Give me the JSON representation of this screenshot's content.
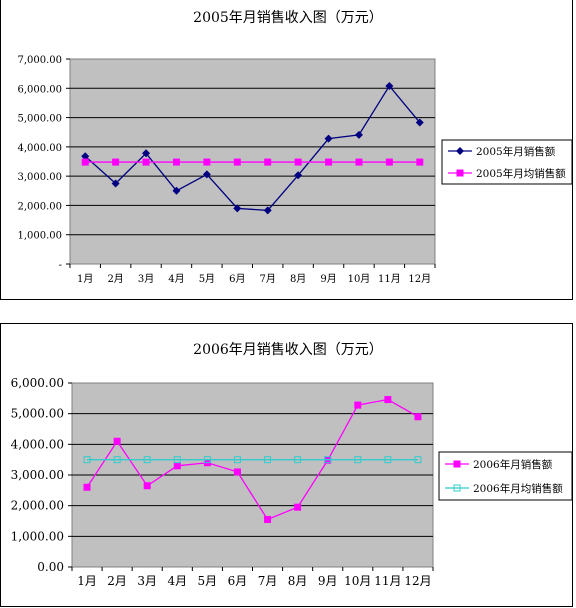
{
  "chart_data": [
    {
      "type": "line",
      "title": "2005年月销售收入图（万元）",
      "categories": [
        "1月",
        "2月",
        "3月",
        "4月",
        "5月",
        "6月",
        "7月",
        "8月",
        "9月",
        "10月",
        "11月",
        "12月"
      ],
      "ylim": [
        0,
        7000
      ],
      "yticks": [
        "-",
        "1,000.00",
        "2,000.00",
        "3,000.00",
        "4,000.00",
        "5,000.00",
        "6,000.00",
        "7,000.00"
      ],
      "grid": true,
      "legend_position": "right",
      "series": [
        {
          "name": "2005年月销售额",
          "color": "#000080",
          "marker": "diamond",
          "values": [
            3680,
            2750,
            3780,
            2500,
            3060,
            1900,
            1830,
            3030,
            4280,
            4410,
            6080,
            4830
          ]
        },
        {
          "name": "2005年月均销售额",
          "color": "#ff00ff",
          "marker": "square",
          "values": [
            3480,
            3480,
            3480,
            3480,
            3480,
            3480,
            3480,
            3480,
            3480,
            3480,
            3480,
            3480
          ]
        }
      ]
    },
    {
      "type": "line",
      "title": "2006年月销售收入图（万元）",
      "categories": [
        "1月",
        "2月",
        "3月",
        "4月",
        "5月",
        "6月",
        "7月",
        "8月",
        "9月",
        "10月",
        "11月",
        "12月"
      ],
      "ylim": [
        0,
        6000
      ],
      "yticks": [
        "0.00",
        "1,000.00",
        "2,000.00",
        "3,000.00",
        "4,000.00",
        "5,000.00",
        "6,000.00"
      ],
      "grid": true,
      "legend_position": "right",
      "series": [
        {
          "name": "2006年月销售额",
          "color": "#ff00ff",
          "marker": "square",
          "values": [
            2600,
            4100,
            2650,
            3300,
            3400,
            3100,
            1550,
            1950,
            3480,
            5280,
            5460,
            4900
          ]
        },
        {
          "name": "2006年月均销售额",
          "color": "#33cccc",
          "marker": "hollow-square",
          "values": [
            3500,
            3500,
            3500,
            3500,
            3500,
            3500,
            3500,
            3500,
            3500,
            3500,
            3500,
            3500
          ]
        }
      ]
    }
  ]
}
